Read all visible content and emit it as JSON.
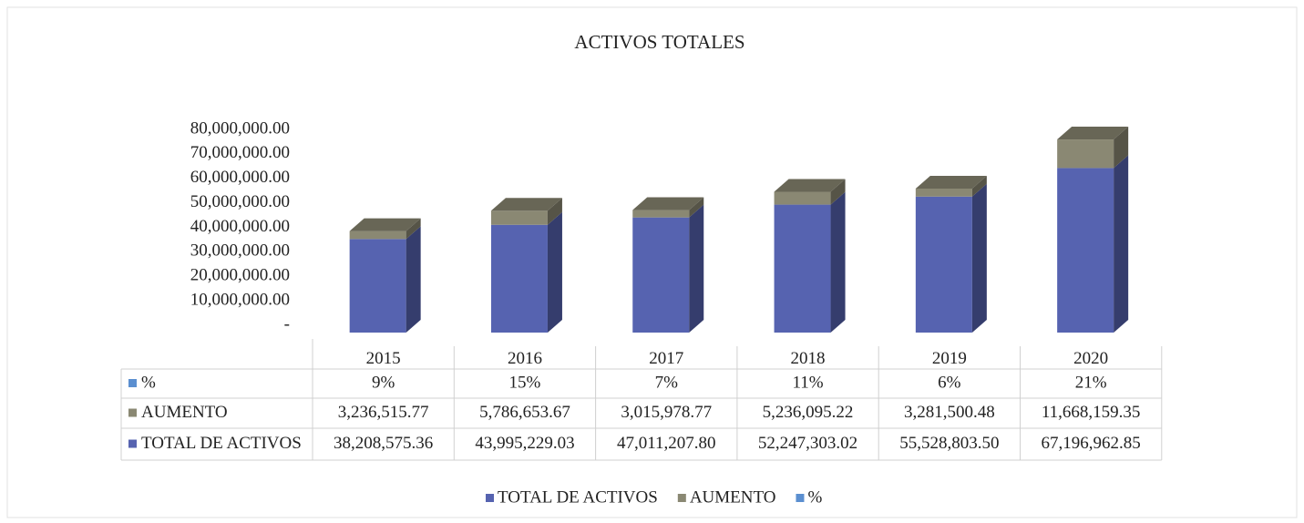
{
  "chart_data": {
    "type": "bar3d_stacked",
    "title": "ACTIVOS TOTALES",
    "categories": [
      "2015",
      "2016",
      "2017",
      "2018",
      "2019",
      "2020"
    ],
    "series": [
      {
        "name": "TOTAL DE ACTIVOS",
        "color": "#5663b0",
        "values": [
          38208575.36,
          43995229.03,
          47011207.8,
          52247303.02,
          55528803.5,
          67196962.85
        ],
        "value_labels": [
          "38,208,575.36",
          "43,995,229.03",
          "47,011,207.80",
          "52,247,303.02",
          "55,528,803.50",
          "67,196,962.85"
        ]
      },
      {
        "name": "AUMENTO",
        "color": "#8a8873",
        "values": [
          3236515.77,
          5786653.67,
          3015978.77,
          5236095.22,
          3281500.48,
          11668159.35
        ],
        "value_labels": [
          "3,236,515.77",
          "5,786,653.67",
          "3,015,978.77",
          "5,236,095.22",
          "3,281,500.48",
          "11,668,159.35"
        ]
      },
      {
        "name": "%",
        "color": "#5b8fd0",
        "values": [
          0.09,
          0.15,
          0.07,
          0.11,
          0.06,
          0.21
        ],
        "value_labels": [
          "9%",
          "15%",
          "7%",
          "11%",
          "6%",
          "21%"
        ]
      }
    ],
    "ylim": [
      0,
      80000000
    ],
    "yticks": [
      {
        "value": 0,
        "label": "-"
      },
      {
        "value": 10000000,
        "label": "10,000,000.00"
      },
      {
        "value": 20000000,
        "label": "20,000,000.00"
      },
      {
        "value": 30000000,
        "label": "30,000,000.00"
      },
      {
        "value": 40000000,
        "label": "40,000,000.00"
      },
      {
        "value": 50000000,
        "label": "50,000,000.00"
      },
      {
        "value": 60000000,
        "label": "60,000,000.00"
      },
      {
        "value": 70000000,
        "label": "70,000,000.00"
      },
      {
        "value": 80000000,
        "label": "80,000,000.00"
      }
    ],
    "legend": "bottom"
  }
}
